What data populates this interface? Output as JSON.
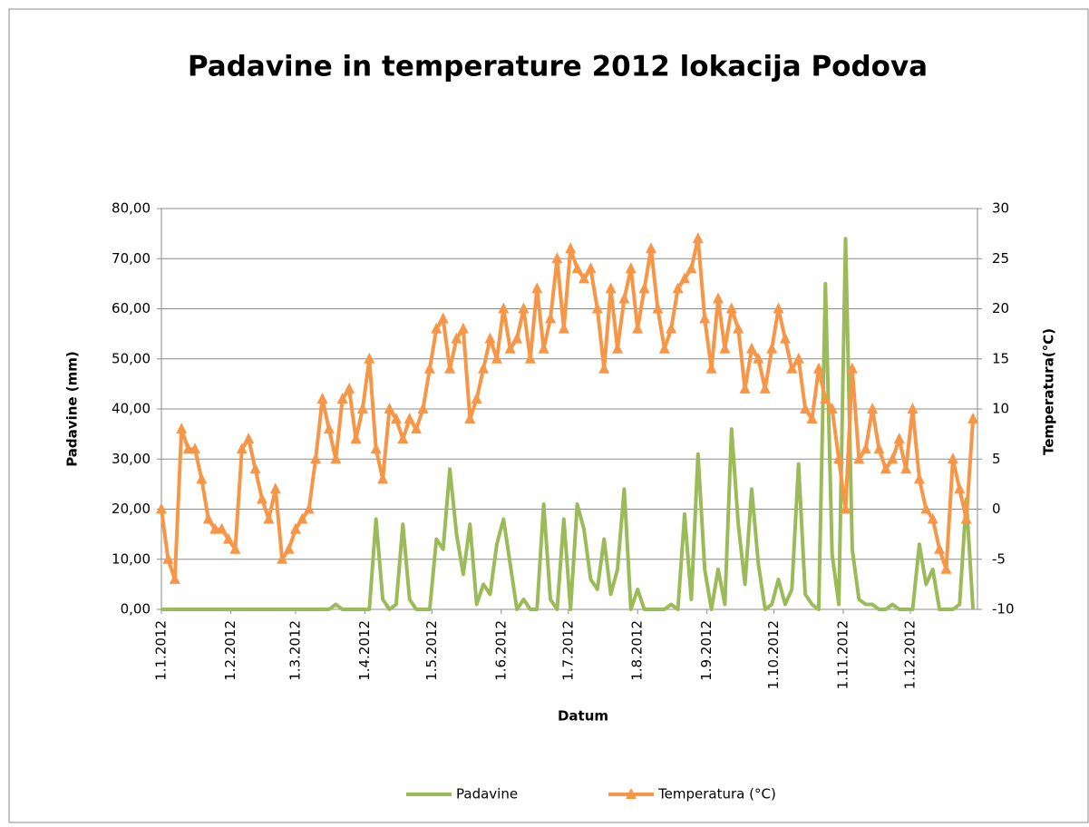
{
  "chart_data": {
    "type": "line",
    "title": "Padavine in temperature 2012 lokacija Podova",
    "x_label": "Datum",
    "y_label": "Padavine (mm)",
    "y2_label": "Temperatura(°C)",
    "x": [
      "1.1.2012",
      "4.1.2012",
      "7.1.2012",
      "10.1.2012",
      "13.1.2012",
      "16.1.2012",
      "19.1.2012",
      "22.1.2012",
      "25.1.2012",
      "28.1.2012",
      "31.1.2012",
      "3.2.2012",
      "6.2.2012",
      "9.2.2012",
      "12.2.2012",
      "15.2.2012",
      "18.2.2012",
      "21.2.2012",
      "24.2.2012",
      "27.2.2012",
      "1.3.2012",
      "4.3.2012",
      "7.3.2012",
      "10.3.2012",
      "13.3.2012",
      "16.3.2012",
      "19.3.2012",
      "22.3.2012",
      "25.3.2012",
      "28.3.2012",
      "31.3.2012",
      "3.4.2012",
      "6.4.2012",
      "9.4.2012",
      "12.4.2012",
      "15.4.2012",
      "18.4.2012",
      "21.4.2012",
      "24.4.2012",
      "27.4.2012",
      "30.4.2012",
      "3.5.2012",
      "6.5.2012",
      "9.5.2012",
      "12.5.2012",
      "15.5.2012",
      "18.5.2012",
      "21.5.2012",
      "24.5.2012",
      "27.5.2012",
      "30.5.2012",
      "2.6.2012",
      "5.6.2012",
      "8.6.2012",
      "11.6.2012",
      "14.6.2012",
      "17.6.2012",
      "20.6.2012",
      "23.6.2012",
      "26.6.2012",
      "29.6.2012",
      "2.7.2012",
      "5.7.2012",
      "8.7.2012",
      "11.7.2012",
      "14.7.2012",
      "17.7.2012",
      "20.7.2012",
      "23.7.2012",
      "26.7.2012",
      "29.7.2012",
      "1.8.2012",
      "4.8.2012",
      "7.8.2012",
      "10.8.2012",
      "13.8.2012",
      "16.8.2012",
      "19.8.2012",
      "22.8.2012",
      "25.8.2012",
      "28.8.2012",
      "31.8.2012",
      "3.9.2012",
      "6.9.2012",
      "9.9.2012",
      "12.9.2012",
      "15.9.2012",
      "18.9.2012",
      "21.9.2012",
      "24.9.2012",
      "27.9.2012",
      "30.9.2012",
      "3.10.2012",
      "6.10.2012",
      "9.10.2012",
      "12.10.2012",
      "15.10.2012",
      "18.10.2012",
      "21.10.2012",
      "24.10.2012",
      "27.10.2012",
      "30.10.2012",
      "2.11.2012",
      "5.11.2012",
      "8.11.2012",
      "11.11.2012",
      "14.11.2012",
      "17.11.2012",
      "20.11.2012",
      "23.11.2012",
      "26.11.2012",
      "29.11.2012",
      "2.12.2012",
      "5.12.2012",
      "8.12.2012",
      "11.12.2012",
      "14.12.2012",
      "17.12.2012",
      "20.12.2012",
      "23.12.2012",
      "26.12.2012",
      "29.12.2012"
    ],
    "series": [
      {
        "name": "Padavine",
        "color": "#9bbb59",
        "axis": "y",
        "marker": "none",
        "values": [
          0,
          0,
          0,
          0,
          0,
          0,
          0,
          0,
          0,
          0,
          0,
          0,
          0,
          0,
          0,
          0,
          0,
          0,
          0,
          0,
          0,
          0,
          0,
          0,
          0,
          0,
          1,
          0,
          0,
          0,
          0,
          0,
          18,
          2,
          0,
          1,
          17,
          2,
          0,
          0,
          0,
          14,
          12,
          28,
          15,
          7,
          17,
          1,
          5,
          3,
          13,
          18,
          9,
          0,
          2,
          0,
          0,
          21,
          2,
          0,
          18,
          0,
          21,
          16,
          6,
          4,
          14,
          3,
          8,
          24,
          0,
          4,
          0,
          0,
          0,
          0,
          1,
          0,
          19,
          2,
          31,
          8,
          0,
          8,
          1,
          36,
          17,
          5,
          24,
          9,
          0,
          1,
          6,
          1,
          4,
          29,
          3,
          1,
          0,
          65,
          11,
          1,
          74,
          12,
          2,
          1,
          1,
          0,
          0,
          1,
          0,
          0,
          0,
          13,
          5,
          8,
          0,
          0,
          0,
          1,
          22,
          0
        ]
      },
      {
        "name": "Temperatura (°C)",
        "color": "#f79646",
        "axis": "y2",
        "marker": "triangle",
        "values": [
          0,
          -5,
          -7,
          8,
          6,
          6,
          3,
          -1,
          -2,
          -2,
          -3,
          -4,
          6,
          7,
          4,
          1,
          -1,
          2,
          -5,
          -4,
          -2,
          -1,
          0,
          5,
          11,
          8,
          5,
          11,
          12,
          7,
          10,
          15,
          6,
          3,
          10,
          9,
          7,
          9,
          8,
          10,
          14,
          18,
          19,
          14,
          17,
          18,
          9,
          11,
          14,
          17,
          15,
          20,
          16,
          17,
          20,
          15,
          22,
          16,
          19,
          25,
          18,
          26,
          24,
          23,
          24,
          20,
          14,
          22,
          16,
          21,
          24,
          18,
          22,
          26,
          20,
          16,
          18,
          22,
          23,
          24,
          27,
          19,
          14,
          21,
          16,
          20,
          18,
          12,
          16,
          15,
          12,
          16,
          20,
          17,
          14,
          15,
          10,
          9,
          14,
          11,
          10,
          5,
          0,
          14,
          5,
          6,
          10,
          6,
          4,
          5,
          7,
          4,
          10,
          3,
          0,
          -1,
          -4,
          -6,
          5,
          2,
          -1,
          9
        ]
      }
    ],
    "xlim": [
      "1.1.2012",
      "31.12.2012"
    ],
    "xticks": [
      "1.1.2012",
      "1.2.2012",
      "1.3.2012",
      "1.4.2012",
      "1.5.2012",
      "1.6.2012",
      "1.7.2012",
      "1.8.2012",
      "1.9.2012",
      "1.10.2012",
      "1.11.2012",
      "1.12.2012"
    ],
    "ylim": [
      0,
      80
    ],
    "yticks": [
      {
        "value": 0,
        "label": "0,00"
      },
      {
        "value": 10,
        "label": "10,00"
      },
      {
        "value": 20,
        "label": "20,00"
      },
      {
        "value": 30,
        "label": "30,00"
      },
      {
        "value": 40,
        "label": "40,00"
      },
      {
        "value": 50,
        "label": "50,00"
      },
      {
        "value": 60,
        "label": "60,00"
      },
      {
        "value": 70,
        "label": "70,00"
      },
      {
        "value": 80,
        "label": "80,00"
      }
    ],
    "y2lim": [
      -10,
      30
    ],
    "y2ticks": [
      -10,
      -5,
      0,
      5,
      10,
      15,
      20,
      25,
      30
    ],
    "grid": true,
    "legend": "bottom"
  }
}
